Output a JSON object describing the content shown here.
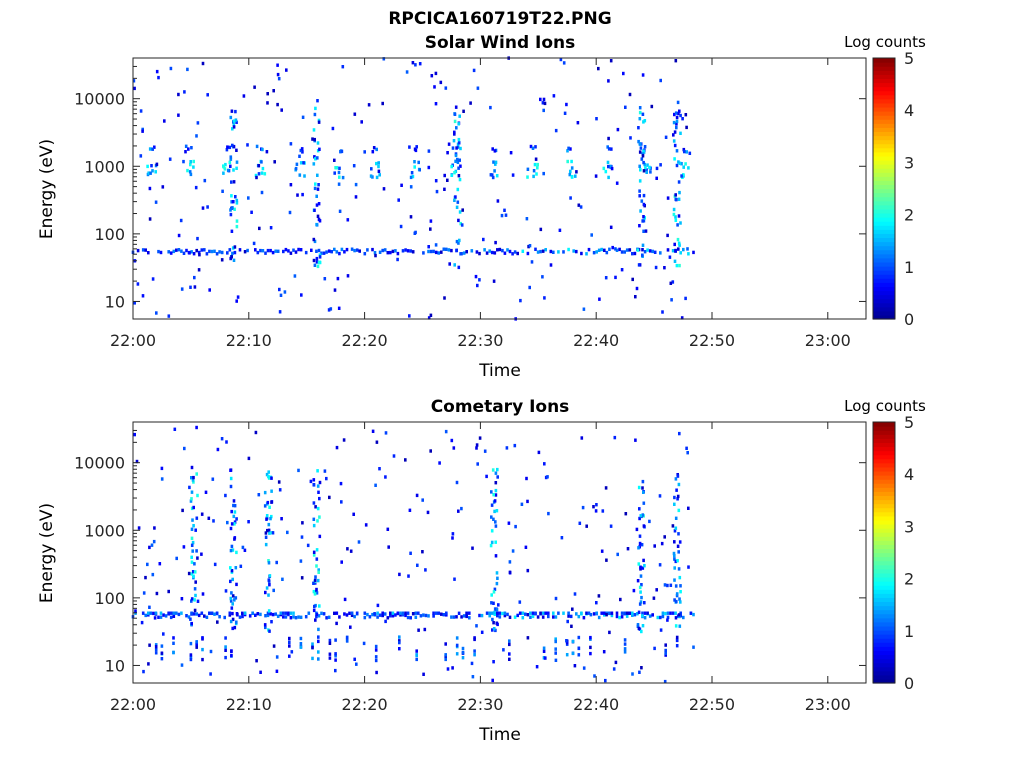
{
  "figure_title": "RPCICA160719T22.PNG",
  "colors": {
    "colormap": [
      "#00008f",
      "#0000ff",
      "#0080ff",
      "#00ffff",
      "#80ff80",
      "#ffff00",
      "#ff8000",
      "#ff0000",
      "#800000"
    ]
  },
  "chart_data": [
    {
      "type": "heatmap",
      "title": "Solar Wind Ions",
      "xlabel": "Time",
      "ylabel": "Energy (eV)",
      "x_ticks": [
        "22:00",
        "22:10",
        "22:20",
        "22:30",
        "22:40",
        "22:50",
        "23:00"
      ],
      "x_range_minutes": [
        0,
        63.3
      ],
      "y_scale": "log",
      "y_range": [
        5.5,
        40000
      ],
      "y_ticks": [
        {
          "value": 10,
          "label": "10"
        },
        {
          "value": 100,
          "label": "100"
        },
        {
          "value": 1000,
          "label": "1000"
        },
        {
          "value": 10000,
          "label": "10000"
        }
      ],
      "colorbar": {
        "label": "Log counts",
        "range": [
          0,
          5
        ],
        "ticks": [
          "0",
          "1",
          "2",
          "3",
          "4",
          "5"
        ]
      },
      "data_extent_minutes": [
        0,
        48.5
      ],
      "features": {
        "baseline_band_eV": 55,
        "sw_peak_eV": 900,
        "sw_peak_times_minutes": [
          1.6,
          4.8,
          8.2,
          11.0,
          14.5,
          17.8,
          21.0,
          24.4,
          27.8,
          31.2,
          34.5,
          37.8,
          41.1,
          44.3,
          47.6
        ],
        "strong_vertical_bursts_minutes": [
          8.7,
          15.9,
          28.0,
          43.9,
          47.0
        ],
        "max_log_counts_observed": 2.3
      }
    },
    {
      "type": "heatmap",
      "title": "Cometary Ions",
      "xlabel": "Time",
      "ylabel": "Energy (eV)",
      "x_ticks": [
        "22:00",
        "22:10",
        "22:20",
        "22:30",
        "22:40",
        "22:50",
        "23:00"
      ],
      "x_range_minutes": [
        0,
        63.3
      ],
      "y_scale": "log",
      "y_range": [
        5.5,
        40000
      ],
      "y_ticks": [
        {
          "value": 10,
          "label": "10"
        },
        {
          "value": 100,
          "label": "100"
        },
        {
          "value": 1000,
          "label": "1000"
        },
        {
          "value": 10000,
          "label": "10000"
        }
      ],
      "colorbar": {
        "label": "Log counts",
        "range": [
          0,
          5
        ],
        "ticks": [
          "0",
          "1",
          "2",
          "3",
          "4",
          "5"
        ]
      },
      "data_extent_minutes": [
        0,
        48.5
      ],
      "features": {
        "baseline_band_eV": 55,
        "low_energy_band_eV": 15,
        "strong_vertical_bursts_minutes": [
          5.3,
          8.7,
          11.7,
          15.9,
          31.2,
          43.9,
          47.0
        ],
        "max_log_counts_observed": 2.3
      }
    }
  ]
}
